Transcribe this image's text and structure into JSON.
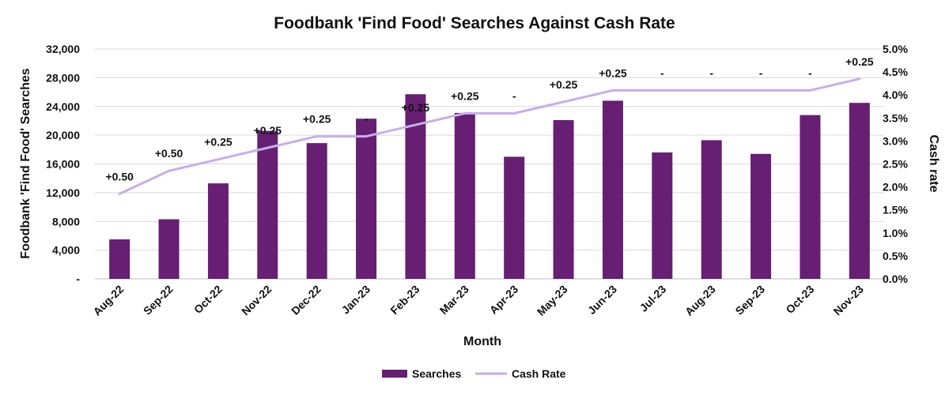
{
  "chart_data": {
    "type": "bar",
    "title": "Foodbank 'Find Food' Searches Against Cash Rate",
    "xlabel": "Month",
    "ylabel": "Foodbank 'Find Food' Searches",
    "y2label": "Cash rate",
    "categories": [
      "Aug-22",
      "Sep-22",
      "Oct-22",
      "Nov-22",
      "Dec-22",
      "Jan-23",
      "Feb-23",
      "Mar-23",
      "Apr-23",
      "May-23",
      "Jun-23",
      "Jul-23",
      "Aug-23",
      "Sep-23",
      "Oct-23",
      "Nov-23"
    ],
    "ylim": [
      0,
      32000
    ],
    "y_ticks": [
      "-",
      "4,000",
      "8,000",
      "12,000",
      "16,000",
      "20,000",
      "24,000",
      "28,000",
      "32,000"
    ],
    "y2lim": [
      0,
      5.0
    ],
    "y2_ticks": [
      "0.0%",
      "0.5%",
      "1.0%",
      "1.5%",
      "2.0%",
      "2.5%",
      "3.0%",
      "3.5%",
      "4.0%",
      "4.5%",
      "5.0%"
    ],
    "grid": true,
    "legend_position": "bottom",
    "series": [
      {
        "name": "Searches",
        "type": "bar",
        "axis": "left",
        "color": "#661f72",
        "values": [
          5500,
          8300,
          13300,
          20600,
          18900,
          22300,
          25700,
          23100,
          17000,
          22100,
          24800,
          17600,
          19300,
          17400,
          22800,
          24500
        ]
      },
      {
        "name": "Cash Rate",
        "type": "line",
        "axis": "right",
        "color": "#c7aeec",
        "values": [
          1.85,
          2.35,
          2.6,
          2.85,
          3.1,
          3.1,
          3.35,
          3.6,
          3.6,
          3.85,
          4.1,
          4.1,
          4.1,
          4.1,
          4.1,
          4.35
        ]
      }
    ],
    "change_labels": [
      "+0.50",
      "+0.50",
      "+0.25",
      "+0.25",
      "+0.25",
      "-",
      "+0.25",
      "+0.25",
      "-",
      "+0.25",
      "+0.25",
      "-",
      "-",
      "-",
      "-",
      "+0.25"
    ]
  }
}
